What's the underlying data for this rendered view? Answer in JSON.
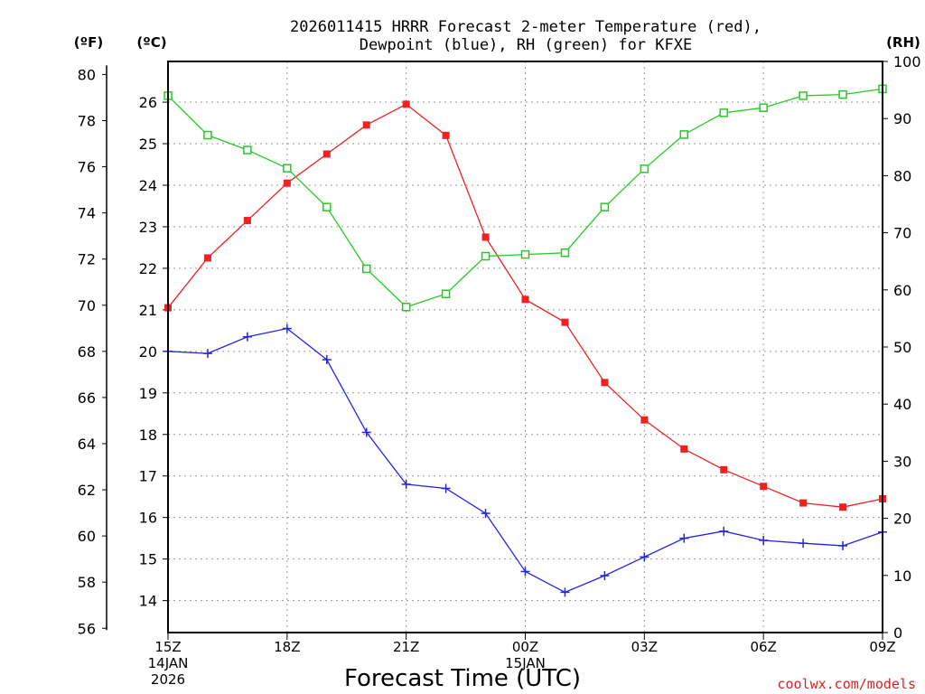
{
  "chart_data": {
    "type": "line",
    "title_lines": [
      "2026011415 HRRR Forecast 2-meter Temperature (red),",
      "Dewpoint (blue), RH (green) for KFXE"
    ],
    "xlabel": "Forecast Time (UTC)",
    "credit": "coolwx.com/models",
    "unit_labels": {
      "fahrenheit": "(ºF)",
      "celsius": "(ºC)",
      "rh": "(RH)"
    },
    "x_hours": [
      0,
      1,
      2,
      3,
      4,
      5,
      6,
      7,
      8,
      9,
      10,
      11,
      12,
      13,
      14,
      15,
      16,
      17,
      18
    ],
    "x_ticks": [
      {
        "hour": 0,
        "lines": [
          "15Z",
          "14JAN",
          "2026"
        ]
      },
      {
        "hour": 3,
        "lines": [
          "18Z"
        ]
      },
      {
        "hour": 6,
        "lines": [
          "21Z"
        ]
      },
      {
        "hour": 9,
        "lines": [
          "00Z",
          "15JAN"
        ]
      },
      {
        "hour": 12,
        "lines": [
          "03Z"
        ]
      },
      {
        "hour": 15,
        "lines": [
          "06Z"
        ]
      },
      {
        "hour": 18,
        "lines": [
          "09Z"
        ]
      }
    ],
    "celsius_axis": {
      "range": [
        13.23,
        26.98
      ],
      "ticks": [
        14,
        15,
        16,
        17,
        18,
        19,
        20,
        21,
        22,
        23,
        24,
        25,
        26
      ]
    },
    "fahrenheit_axis": {
      "ticks": [
        56,
        58,
        60,
        62,
        64,
        66,
        68,
        70,
        72,
        74,
        76,
        78,
        80
      ]
    },
    "rh_axis": {
      "range": [
        0,
        100
      ],
      "ticks": [
        0,
        10,
        20,
        30,
        40,
        50,
        60,
        70,
        80,
        90,
        100
      ]
    },
    "series": [
      {
        "name": "Temperature",
        "axis": "celsius",
        "color": "#ee2222",
        "marker": "filled-square",
        "values": [
          21.05,
          22.25,
          23.15,
          24.05,
          24.75,
          25.45,
          25.95,
          25.2,
          22.75,
          21.25,
          20.7,
          19.25,
          18.35,
          17.65,
          17.15,
          16.75,
          16.35,
          16.25,
          16.45
        ]
      },
      {
        "name": "Dewpoint",
        "axis": "celsius",
        "color": "#2222ee",
        "marker": "plus",
        "values": [
          20.0,
          19.95,
          20.35,
          20.55,
          19.8,
          18.05,
          16.8,
          16.7,
          16.1,
          14.7,
          14.2,
          14.6,
          15.05,
          15.5,
          15.67,
          15.45,
          15.38,
          15.32,
          15.65
        ]
      },
      {
        "name": "RH",
        "axis": "rh",
        "color": "#22cc22",
        "marker": "open-square",
        "values": [
          94,
          87.1,
          84.5,
          81.3,
          74.5,
          63.7,
          57.0,
          59.3,
          65.9,
          66.2,
          66.5,
          74.5,
          81.2,
          87.2,
          91.0,
          91.9,
          94.0,
          94.2,
          95.2
        ]
      }
    ]
  }
}
